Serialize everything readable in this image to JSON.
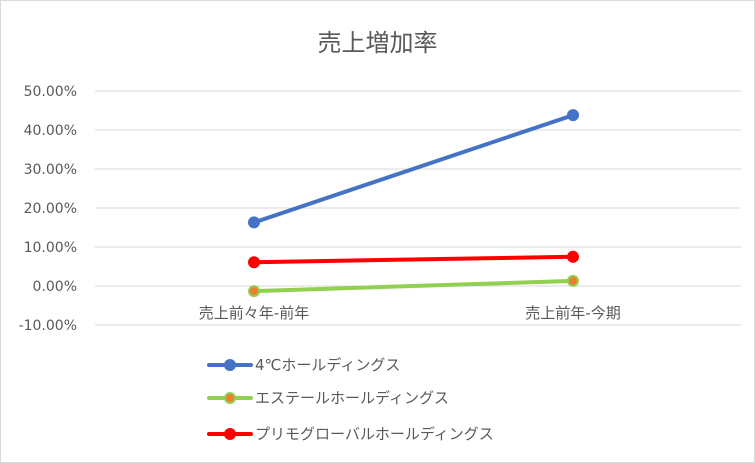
{
  "chart_data": {
    "type": "line",
    "title": "売上増加率",
    "categories": [
      "売上前々年-前年",
      "売上前年-今期"
    ],
    "series": [
      {
        "name": "4℃ホールディングス",
        "values": [
          16.3,
          43.8
        ],
        "color": "#4472C4",
        "marker_fill": "#4472C4"
      },
      {
        "name": "エステールホールディングス",
        "values": [
          -1.3,
          1.3
        ],
        "color": "#92D050",
        "marker_fill": "#ED7D31"
      },
      {
        "name": "プリモグローバルホールディングス",
        "values": [
          6.1,
          7.5
        ],
        "color": "#FF0000",
        "marker_fill": "#FF0000"
      }
    ],
    "ylim": [
      -10,
      50
    ],
    "y_ticks": [
      -10,
      0,
      10,
      20,
      30,
      40,
      50
    ],
    "y_tick_labels": [
      "-10.00%",
      "0.00%",
      "10.00%",
      "20.00%",
      "30.00%",
      "40.00%",
      "50.00%"
    ],
    "grid": true,
    "legend_position": "bottom-left",
    "xlabel": "",
    "ylabel": ""
  }
}
